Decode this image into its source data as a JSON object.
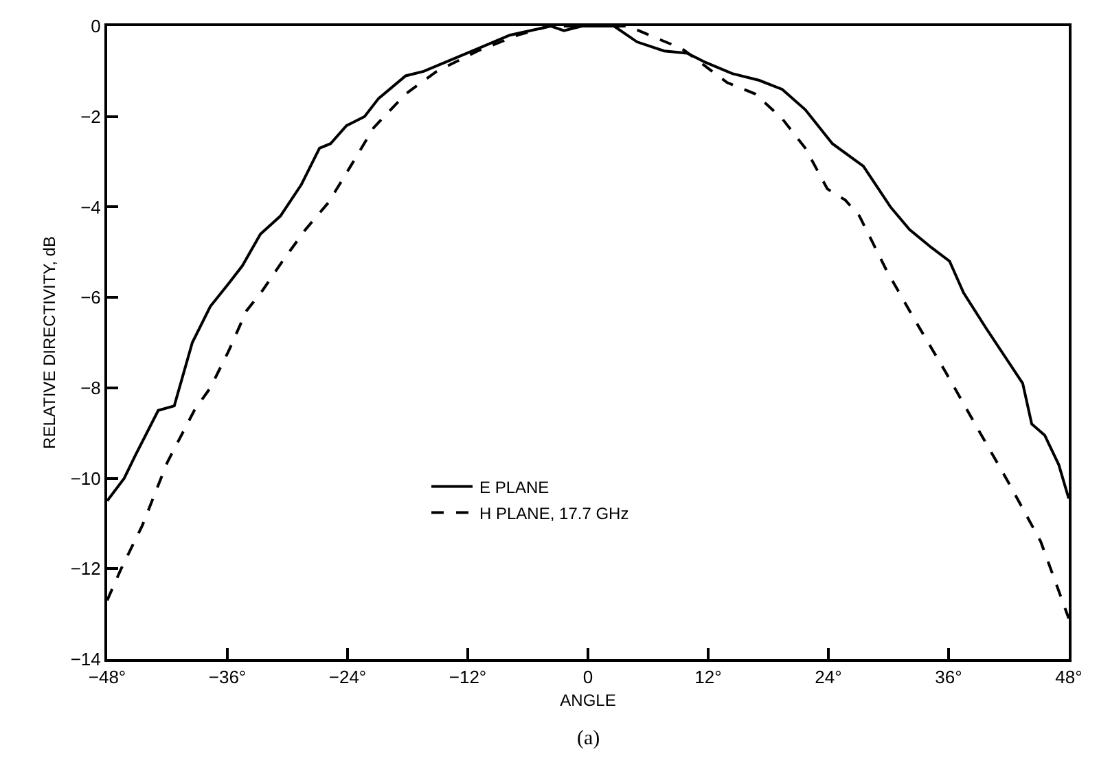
{
  "chart_data": {
    "type": "line",
    "xlabel": "ANGLE",
    "ylabel": "RELATIVE DIRECTIVITY, dB",
    "annotations": [
      "(a)"
    ],
    "xlim": [
      -48,
      48
    ],
    "ylim": [
      -14,
      0
    ],
    "xticks": [
      {
        "value": -48,
        "label": "−48°"
      },
      {
        "value": -36,
        "label": "−36°"
      },
      {
        "value": -24,
        "label": "−24°"
      },
      {
        "value": -12,
        "label": "−12°"
      },
      0,
      {
        "value": 12,
        "label": "12°"
      },
      {
        "value": 24,
        "label": "24°"
      },
      {
        "value": 36,
        "label": "36°"
      },
      {
        "value": 48,
        "label": "48°"
      }
    ],
    "yticks": [
      {
        "value": -14,
        "label": "−14"
      },
      {
        "value": -12,
        "label": "−12"
      },
      {
        "value": -10,
        "label": "−10"
      },
      {
        "value": -8,
        "label": "−8"
      },
      {
        "value": -6,
        "label": "−6"
      },
      {
        "value": -4,
        "label": "−4"
      },
      {
        "value": -2,
        "label": "−2"
      },
      0
    ],
    "grid": false,
    "legend": "bottom",
    "marker": "none",
    "series": [
      {
        "name": "E PLANE",
        "color": "#000000",
        "line_style": "solid",
        "x": [
          -48,
          -46.3,
          -45.2,
          -42.9,
          -41.3,
          -39.5,
          -37.7,
          -35.9,
          -34.5,
          -32.7,
          -30.7,
          -28.6,
          -26.8,
          -25.7,
          -24.1,
          -22.3,
          -20.9,
          -18.2,
          -16.4,
          -13.7,
          -11.0,
          -7.8,
          -3.7,
          -2.4,
          -0.6,
          0.5,
          2.6,
          4.9,
          7.6,
          9.9,
          11.7,
          14.4,
          17.1,
          19.4,
          21.7,
          24.4,
          27.5,
          30.2,
          32.1,
          34.3,
          36.1,
          37.5,
          39.8,
          41.6,
          43.4,
          44.3,
          45.6,
          47.0,
          48
        ],
        "values": [
          -10.5,
          -10.0,
          -9.5,
          -8.5,
          -8.4,
          -7.0,
          -6.2,
          -5.7,
          -5.3,
          -4.6,
          -4.2,
          -3.5,
          -2.7,
          -2.6,
          -2.2,
          -2.0,
          -1.6,
          -1.1,
          -1.0,
          -0.75,
          -0.5,
          -0.2,
          0.0,
          -0.1,
          0.0,
          0.0,
          0.0,
          -0.35,
          -0.55,
          -0.6,
          -0.8,
          -1.05,
          -1.2,
          -1.4,
          -1.85,
          -2.6,
          -3.1,
          -4.0,
          -4.5,
          -4.9,
          -5.2,
          -5.9,
          -6.7,
          -7.3,
          -7.9,
          -8.8,
          -9.05,
          -9.7,
          -10.45
        ]
      },
      {
        "name": "H PLANE, 17.7 GHz",
        "color": "#000000",
        "line_style": "dashed",
        "x": [
          -48,
          -46.6,
          -44.5,
          -42.0,
          -39.3,
          -37.7,
          -35.9,
          -34.1,
          -32.5,
          -30.5,
          -28.2,
          -25.9,
          -23.7,
          -21.4,
          -18.2,
          -15.1,
          -11.0,
          -7.0,
          -3.9,
          0.8,
          4.0,
          7.2,
          9.4,
          12.1,
          13.9,
          16.7,
          19.4,
          21.7,
          23.9,
          25.7,
          27.1,
          29.8,
          32.5,
          35.7,
          38.9,
          42.0,
          45.2,
          48
        ],
        "values": [
          -12.7,
          -12.0,
          -11.05,
          -9.65,
          -8.5,
          -8.0,
          -7.2,
          -6.3,
          -5.85,
          -5.2,
          -4.5,
          -3.9,
          -3.1,
          -2.25,
          -1.5,
          -1.0,
          -0.55,
          -0.2,
          0.0,
          0.0,
          0.0,
          -0.3,
          -0.5,
          -0.95,
          -1.25,
          -1.5,
          -2.05,
          -2.7,
          -3.6,
          -3.85,
          -4.2,
          -5.4,
          -6.45,
          -7.65,
          -8.9,
          -10.1,
          -11.4,
          -13.1
        ]
      }
    ]
  }
}
